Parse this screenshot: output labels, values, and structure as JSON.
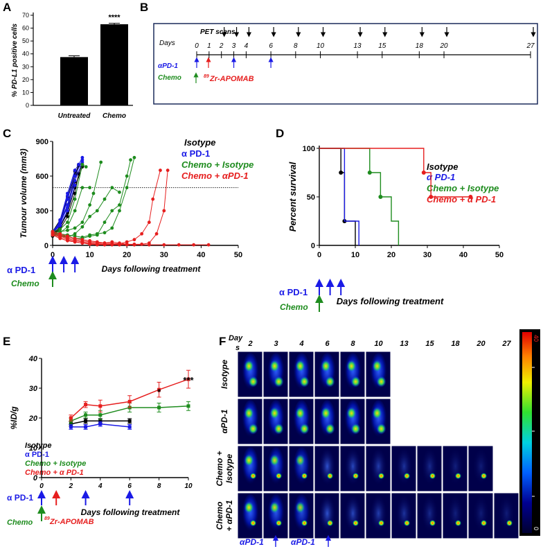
{
  "colors": {
    "black": "#000000",
    "blue": "#1a1ae6",
    "green": "#1e8c1e",
    "red": "#e61e1e",
    "pet_background": "#00004a"
  },
  "panels": {
    "a": {
      "letter": "A"
    },
    "b": {
      "letter": "B"
    },
    "c": {
      "letter": "C"
    },
    "d": {
      "letter": "D"
    },
    "e": {
      "letter": "E"
    },
    "f": {
      "letter": "F"
    }
  },
  "panel_b": {
    "pet_label": "PET scans",
    "days_label": "Days",
    "ticks": [
      "0",
      "1",
      "2",
      "3",
      "4",
      "6",
      "8",
      "10",
      "13",
      "15",
      "18",
      "20",
      "27"
    ],
    "pet_days": [
      2,
      3,
      4,
      6,
      8,
      10,
      13,
      15,
      18,
      20,
      27
    ],
    "apd1_label": "αPD-1",
    "apd1_days": [
      0,
      3,
      6
    ],
    "chemo_label": "Chemo",
    "zr_sup": "89",
    "zr_label": "Zr-APOMAB"
  },
  "panel_c": {
    "legend": [
      "Isotype",
      "α PD-1",
      "Chemo + Isotype",
      "Chemo + αPD-1"
    ],
    "treatment_apd1": "α PD-1",
    "treatment_chemo": "Chemo"
  },
  "panel_d": {
    "legend": [
      "Isotype",
      "α PD-1",
      "Chemo + Isotype",
      "Chemo + α PD-1"
    ],
    "treatment_apd1": "α PD-1",
    "treatment_chemo": "Chemo"
  },
  "panel_e": {
    "legend": [
      "Isotype",
      "α PD-1",
      "Chemo + Isotype",
      "Chemo + α PD-1"
    ],
    "treatment_apd1": "α PD-1",
    "treatment_chemo": "Chemo",
    "zr_sup": "89",
    "zr_label": "Zr-APOMAB"
  },
  "panel_f": {
    "days_header_1": "Day",
    "days_header_2": "s",
    "days": [
      "2",
      "3",
      "4",
      "6",
      "8",
      "10",
      "13",
      "15",
      "18",
      "20",
      "27"
    ],
    "rows": [
      {
        "label_lines": [
          "Isotype"
        ],
        "ncols": 6
      },
      {
        "label_lines": [
          "αPD-1"
        ],
        "ncols": 6
      },
      {
        "label_lines": [
          "Chemo +",
          "Isotype"
        ],
        "ncols": 10
      },
      {
        "label_lines": [
          "Chemo",
          "+ αPD-1"
        ],
        "ncols": 11
      }
    ],
    "colorbar_max": "40",
    "colorbar_min": "0",
    "bottom_labels": [
      "αPD-1",
      "αPD-1"
    ]
  },
  "chart_data": [
    {
      "id": "A",
      "type": "bar",
      "categories": [
        "Untreated",
        "Chemo"
      ],
      "values": [
        37.5,
        63
      ],
      "errors": [
        1,
        0.8
      ],
      "ylabel": "% PD-L1 positive cells",
      "xlabel": "",
      "ylim": [
        0,
        70
      ],
      "yticks": [
        0,
        10,
        20,
        30,
        40,
        50,
        60,
        70
      ],
      "annotations": [
        {
          "category": "Chemo",
          "text": "****"
        }
      ]
    },
    {
      "id": "C",
      "type": "line",
      "xlabel": "Days following treatment",
      "ylabel": "Tumour volume (mm3)",
      "xlim": [
        0,
        50
      ],
      "ylim": [
        0,
        900
      ],
      "xticks": [
        0,
        10,
        20,
        30,
        40,
        50
      ],
      "yticks": [
        0,
        300,
        600,
        900
      ],
      "threshold": 500,
      "series": [
        {
          "name": "Isotype",
          "color": "black",
          "curves": [
            {
              "x": [
                0,
                2,
                4,
                6,
                7
              ],
              "y": [
                90,
                150,
                300,
                600,
                700
              ]
            },
            {
              "x": [
                0,
                2,
                4,
                6,
                7
              ],
              "y": [
                100,
                180,
                350,
                550,
                690
              ]
            },
            {
              "x": [
                0,
                2,
                4,
                6,
                7,
                8
              ],
              "y": [
                80,
                140,
                250,
                450,
                620,
                700
              ]
            },
            {
              "x": [
                0,
                2,
                4,
                6
              ],
              "y": [
                110,
                200,
                420,
                640
              ]
            },
            {
              "x": [
                0,
                2,
                4,
                6,
                8
              ],
              "y": [
                95,
                160,
                280,
                500,
                680
              ]
            },
            {
              "x": [
                0,
                2,
                4,
                6
              ],
              "y": [
                120,
                220,
                400,
                610
              ]
            }
          ]
        },
        {
          "name": "α PD-1",
          "color": "blue",
          "curves": [
            {
              "x": [
                0,
                2,
                4,
                6,
                7,
                8
              ],
              "y": [
                100,
                180,
                400,
                650,
                700,
                760
              ]
            },
            {
              "x": [
                0,
                2,
                4,
                6,
                8
              ],
              "y": [
                120,
                200,
                350,
                600,
                740
              ]
            },
            {
              "x": [
                0,
                2,
                4,
                6
              ],
              "y": [
                90,
                220,
                450,
                650
              ]
            },
            {
              "x": [
                0,
                2,
                4,
                6
              ],
              "y": [
                110,
                170,
                300,
                520
              ]
            },
            {
              "x": [
                0,
                2,
                4,
                6,
                8
              ],
              "y": [
                105,
                190,
                330,
                560,
                720
              ]
            },
            {
              "x": [
                0,
                2,
                4
              ],
              "y": [
                95,
                210,
                430
              ]
            }
          ]
        },
        {
          "name": "Chemo + Isotype",
          "color": "green",
          "curves": [
            {
              "x": [
                0,
                2,
                4,
                6,
                8,
                9
              ],
              "y": [
                120,
                140,
                200,
                400,
                700,
                680
              ]
            },
            {
              "x": [
                0,
                2,
                4,
                6,
                8,
                10
              ],
              "y": [
                100,
                110,
                160,
                300,
                500,
                500
              ]
            },
            {
              "x": [
                0,
                2,
                4,
                6,
                8,
                10,
                11,
                13
              ],
              "y": [
                110,
                120,
                130,
                150,
                200,
                350,
                450,
                720
              ]
            },
            {
              "x": [
                0,
                2,
                4,
                6,
                8,
                10,
                12,
                14,
                16,
                18,
                20,
                21
              ],
              "y": [
                100,
                90,
                80,
                60,
                60,
                80,
                90,
                200,
                300,
                350,
                600,
                740
              ]
            },
            {
              "x": [
                0,
                2,
                4,
                6,
                8,
                10,
                12,
                14,
                16,
                18,
                20,
                22
              ],
              "y": [
                110,
                100,
                90,
                80,
                70,
                90,
                100,
                110,
                150,
                300,
                500,
                760
              ]
            },
            {
              "x": [
                0,
                2,
                4,
                6,
                8,
                10,
                12,
                14,
                16,
                18
              ],
              "y": [
                90,
                80,
                70,
                100,
                160,
                250,
                300,
                400,
                500,
                460
              ]
            }
          ]
        },
        {
          "name": "Chemo + αPD-1",
          "color": "red",
          "curves": [
            {
              "x": [
                0,
                2,
                4,
                6,
                8,
                10,
                12,
                14,
                16,
                18,
                20,
                22,
                24,
                26,
                28,
                30,
                31
              ],
              "y": [
                100,
                80,
                60,
                40,
                30,
                20,
                15,
                20,
                30,
                20,
                10,
                10,
                10,
                20,
                100,
                300,
                650
              ]
            },
            {
              "x": [
                0,
                2,
                4,
                6,
                8,
                10,
                12,
                14,
                16,
                18,
                20,
                22,
                24,
                26,
                27,
                29
              ],
              "y": [
                110,
                90,
                70,
                50,
                40,
                30,
                25,
                20,
                15,
                15,
                30,
                50,
                100,
                200,
                400,
                650
              ]
            },
            {
              "x": [
                0,
                2,
                4,
                6,
                8,
                10,
                12,
                14,
                16,
                18,
                20,
                22,
                26,
                30,
                34,
                38,
                42
              ],
              "y": [
                100,
                70,
                50,
                30,
                20,
                10,
                5,
                5,
                5,
                5,
                5,
                5,
                5,
                5,
                5,
                5,
                5
              ]
            },
            {
              "x": [
                0,
                2,
                4,
                6,
                8,
                10,
                12,
                14,
                16,
                18,
                20,
                22
              ],
              "y": [
                120,
                100,
                80,
                60,
                50,
                40,
                30,
                20,
                15,
                10,
                10,
                5
              ]
            },
            {
              "x": [
                0,
                2,
                4,
                6,
                8,
                10,
                12,
                14,
                16,
                18
              ],
              "y": [
                90,
                60,
                40,
                30,
                20,
                15,
                10,
                10,
                10,
                10
              ]
            }
          ]
        }
      ]
    },
    {
      "id": "D",
      "type": "line",
      "step": true,
      "xlabel": "Days following treatment",
      "ylabel": "Percent survival",
      "xlim": [
        0,
        50
      ],
      "ylim": [
        0,
        100
      ],
      "xticks": [
        0,
        10,
        20,
        30,
        40,
        50
      ],
      "yticks": [
        0,
        50,
        100
      ],
      "series": [
        {
          "name": "Isotype",
          "color": "black",
          "x": [
            0,
            6,
            6,
            7,
            7,
            10,
            10
          ],
          "y": [
            100,
            100,
            75,
            75,
            25,
            25,
            0
          ],
          "markers": [
            [
              6,
              75
            ],
            [
              7,
              25
            ]
          ]
        },
        {
          "name": "α PD-1",
          "color": "blue",
          "x": [
            0,
            7,
            7,
            11,
            11
          ],
          "y": [
            100,
            100,
            25,
            25,
            0
          ],
          "markers": []
        },
        {
          "name": "Chemo + Isotype",
          "color": "green",
          "x": [
            0,
            14,
            14,
            17,
            17,
            20,
            20,
            22,
            22
          ],
          "y": [
            100,
            100,
            75,
            75,
            50,
            50,
            25,
            25,
            0
          ],
          "markers": [
            [
              14,
              75
            ],
            [
              17,
              50
            ]
          ]
        },
        {
          "name": "Chemo + α PD-1",
          "color": "red",
          "x": [
            0,
            29,
            29,
            31,
            31,
            42
          ],
          "y": [
            100,
            100,
            75,
            75,
            50,
            50
          ],
          "markers": [
            [
              29,
              75
            ],
            [
              31,
              50
            ],
            [
              42,
              50
            ]
          ]
        }
      ]
    },
    {
      "id": "E",
      "type": "line",
      "xlabel": "Days following treatment",
      "ylabel": "%ID/g",
      "xlim": [
        0,
        10
      ],
      "ylim": [
        0,
        40
      ],
      "xticks": [
        0,
        2,
        4,
        6,
        8,
        10
      ],
      "yticks": [
        0,
        10,
        20,
        30,
        40
      ],
      "series": [
        {
          "name": "Isotype",
          "color": "black",
          "x": [
            2,
            3,
            4,
            6
          ],
          "y": [
            18,
            19,
            19,
            19
          ],
          "err": [
            0.8,
            0.8,
            0.8,
            0.8
          ]
        },
        {
          "name": "α PD-1",
          "color": "blue",
          "x": [
            2,
            3,
            4,
            6
          ],
          "y": [
            17,
            17,
            18,
            17
          ],
          "err": [
            0.8,
            0.8,
            0.8,
            0.8
          ]
        },
        {
          "name": "Chemo + Isotype",
          "color": "green",
          "x": [
            2,
            3,
            4,
            6,
            8,
            10
          ],
          "y": [
            19,
            21,
            21,
            23.5,
            23.5,
            24
          ],
          "err": [
            1,
            1,
            1.5,
            1.5,
            1.5,
            1.5
          ]
        },
        {
          "name": "Chemo + α PD-1",
          "color": "red",
          "x": [
            2,
            3,
            4,
            6,
            8,
            10
          ],
          "y": [
            20,
            24.5,
            24,
            25.5,
            29.5,
            33
          ],
          "err": [
            1,
            1,
            2,
            2,
            2.5,
            3
          ]
        }
      ],
      "annotations": [
        {
          "x": 8,
          "text": "*"
        },
        {
          "x": 10,
          "text": "***"
        }
      ]
    }
  ]
}
